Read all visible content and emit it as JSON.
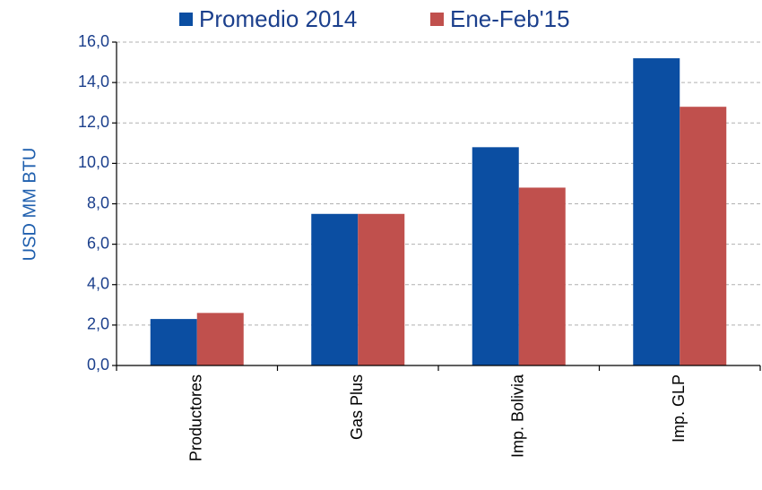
{
  "chart_data": {
    "type": "bar",
    "y_label": "USD MM BTU",
    "categories": [
      "Productores",
      "Gas Plus",
      "Imp. Bolivia",
      "Imp. GLP"
    ],
    "series": [
      {
        "name": "Promedio 2014",
        "color": "#0b4ea2",
        "values": [
          2.3,
          7.5,
          10.8,
          15.2
        ]
      },
      {
        "name": "Ene-Feb'15",
        "color": "#c0504d",
        "values": [
          2.6,
          7.5,
          8.8,
          12.8
        ]
      }
    ],
    "ylim": [
      0,
      16
    ],
    "yticks": [
      {
        "value": 0,
        "label": "0,0"
      },
      {
        "value": 2,
        "label": "2,0"
      },
      {
        "value": 4,
        "label": "4,0"
      },
      {
        "value": 6,
        "label": "6,0"
      },
      {
        "value": 8,
        "label": "8,0"
      },
      {
        "value": 10,
        "label": "10,0"
      },
      {
        "value": 12,
        "label": "12,0"
      },
      {
        "value": 14,
        "label": "14,0"
      },
      {
        "value": 16,
        "label": "16,0"
      }
    ],
    "grid": true
  }
}
